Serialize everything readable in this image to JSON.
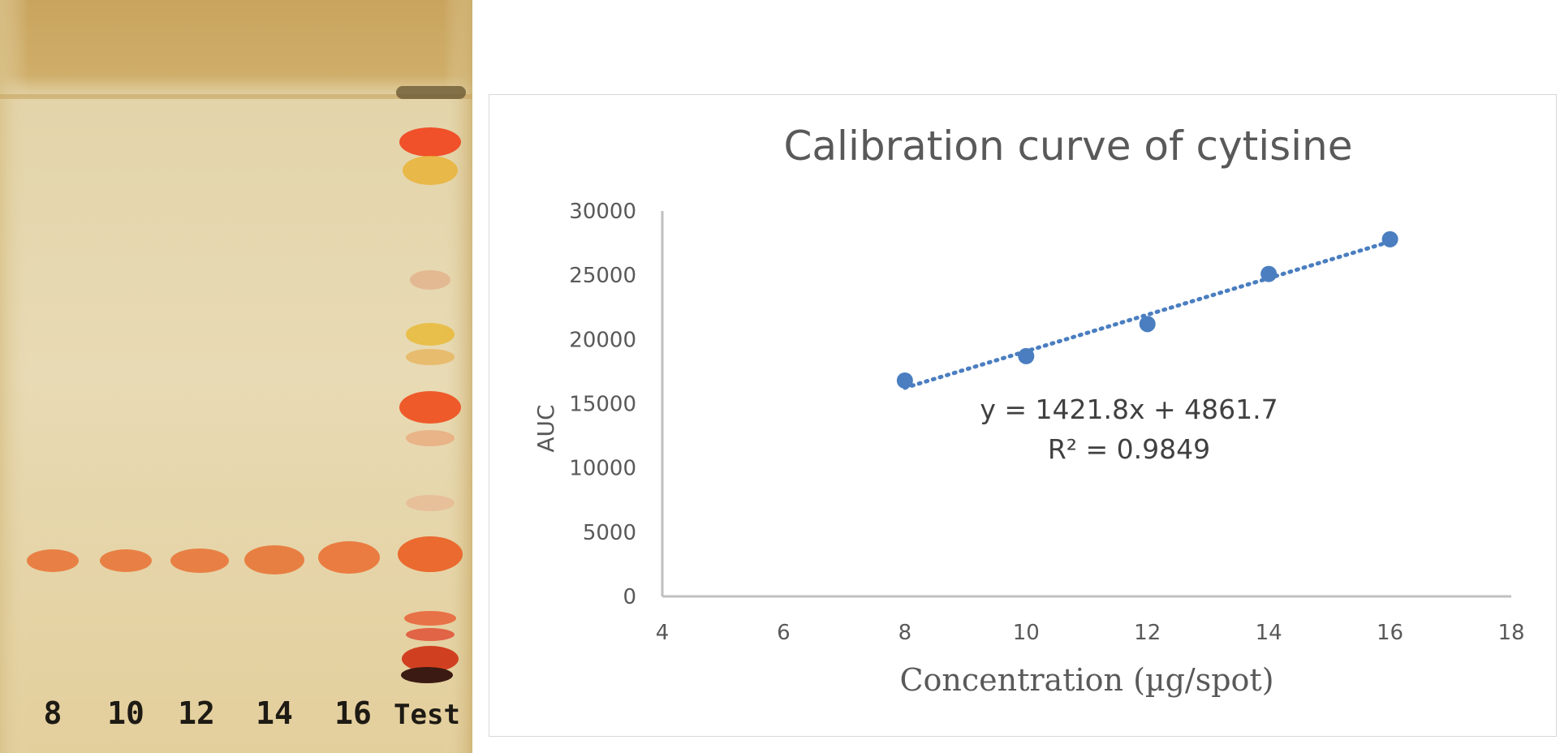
{
  "plate": {
    "lane_labels": [
      "8",
      "10",
      "12",
      "14",
      "16",
      "Test"
    ]
  },
  "chart_data": {
    "type": "scatter",
    "title": "Calibration curve of cytisine",
    "xlabel": "Concentration (µg/spot)",
    "ylabel": "AUC",
    "xlim": [
      4,
      18
    ],
    "ylim": [
      0,
      30000
    ],
    "x_ticks": [
      4,
      6,
      8,
      10,
      12,
      14,
      16,
      18
    ],
    "y_ticks": [
      0,
      5000,
      10000,
      15000,
      20000,
      25000,
      30000
    ],
    "grid": false,
    "series": [
      {
        "x": [
          8,
          10,
          12,
          14,
          16
        ],
        "y": [
          16800,
          18700,
          21200,
          25100,
          27800
        ]
      }
    ],
    "trendline": {
      "type": "linear",
      "slope": 1421.8,
      "intercept": 4861.7,
      "equation_label": "y = 1421.8x + 4861.7",
      "r2_label": "R² = 0.9849"
    },
    "colors": {
      "marker": "#4a7ec0",
      "trendline": "#4a7ec0",
      "axis": "#bfbfbf",
      "text": "#595959"
    }
  }
}
